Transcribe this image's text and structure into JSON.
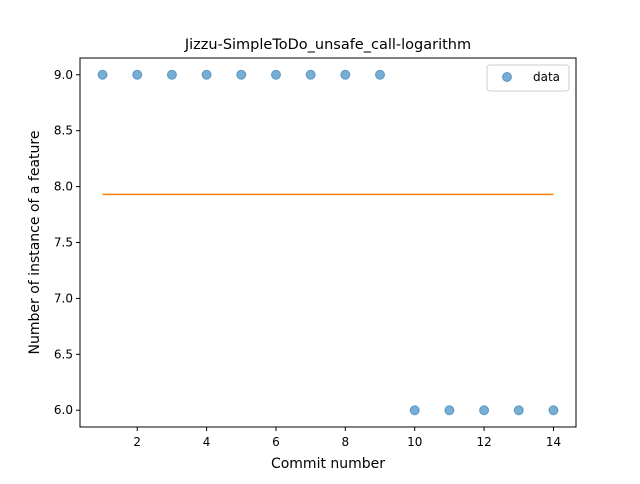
{
  "chart_data": {
    "type": "scatter",
    "title": "Jizzu-SimpleToDo_unsafe_call-logarithm",
    "xlabel": "Commit number",
    "ylabel": "Number of instance of a feature",
    "xlim": [
      0.35,
      14.65
    ],
    "ylim": [
      5.85,
      9.15
    ],
    "x_ticks": [
      2,
      4,
      6,
      8,
      10,
      12,
      14
    ],
    "x_tick_labels": [
      "2",
      "4",
      "6",
      "8",
      "10",
      "12",
      "14"
    ],
    "y_ticks": [
      6.0,
      6.5,
      7.0,
      7.5,
      8.0,
      8.5,
      9.0
    ],
    "y_tick_labels": [
      "6.0",
      "6.5",
      "7.0",
      "7.5",
      "8.0",
      "8.5",
      "9.0"
    ],
    "grid": false,
    "legend_position": "top-right",
    "series": [
      {
        "name": "data",
        "kind": "scatter",
        "color": "#1f77b4",
        "x": [
          1,
          2,
          3,
          4,
          5,
          6,
          7,
          8,
          9,
          10,
          11,
          12,
          13,
          14
        ],
        "y": [
          9,
          9,
          9,
          9,
          9,
          9,
          9,
          9,
          9,
          6,
          6,
          6,
          6,
          6
        ]
      },
      {
        "kind": "line",
        "color": "#ff7f0e",
        "x": [
          1,
          14
        ],
        "y": [
          7.93,
          7.93
        ]
      }
    ]
  }
}
